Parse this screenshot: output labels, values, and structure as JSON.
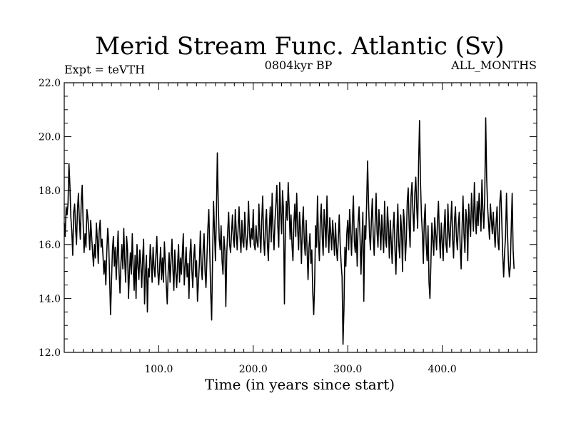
{
  "chart_data": {
    "type": "line",
    "title": "Merid Stream Func. Atlantic (Sv)",
    "subtitle_left": "Expt = teVTH",
    "subtitle_center": "0804kyr BP",
    "subtitle_right": "ALL_MONTHS",
    "xlabel": "Time (in years since start)",
    "ylabel": "",
    "xlim": [
      0,
      500
    ],
    "ylim": [
      12.0,
      22.0
    ],
    "x_ticks": [
      100,
      200,
      300,
      400
    ],
    "x_tick_labels": [
      "100.0",
      "200.0",
      "300.0",
      "400.0"
    ],
    "y_ticks": [
      12,
      14,
      16,
      18,
      20,
      22
    ],
    "y_tick_labels": [
      "12.0",
      "14.0",
      "16.0",
      "18.0",
      "20.0",
      "22.0"
    ],
    "grid": false,
    "line_color": "#000000",
    "series": [
      {
        "x_start": 0,
        "x_step": 1,
        "values": [
          16.8,
          16.3,
          17.4,
          17.1,
          17.5,
          19.0,
          18.2,
          17.0,
          16.5,
          15.6,
          17.2,
          17.5,
          16.6,
          16.0,
          17.3,
          17.9,
          16.9,
          16.2,
          17.6,
          18.2,
          16.8,
          15.7,
          16.4,
          15.9,
          17.3,
          17.0,
          16.5,
          15.8,
          16.9,
          16.3,
          15.7,
          15.2,
          16.0,
          15.5,
          16.8,
          16.2,
          15.3,
          16.5,
          16.9,
          15.9,
          16.2,
          15.6,
          14.9,
          15.4,
          14.5,
          15.7,
          16.6,
          16.1,
          14.8,
          13.4,
          14.6,
          15.8,
          16.3,
          15.2,
          15.9,
          14.7,
          15.6,
          16.5,
          15.0,
          14.2,
          15.3,
          16.0,
          15.1,
          16.6,
          15.4,
          14.6,
          16.3,
          15.8,
          14.0,
          15.0,
          15.7,
          14.9,
          16.4,
          15.1,
          14.3,
          15.6,
          14.0,
          16.0,
          15.2,
          14.7,
          15.8,
          15.3,
          14.4,
          15.5,
          16.2,
          13.8,
          15.0,
          15.6,
          13.5,
          15.1,
          14.8,
          16.0,
          15.4,
          14.6,
          15.9,
          15.2,
          14.8,
          15.6,
          16.3,
          15.0,
          14.5,
          15.2,
          15.9,
          14.7,
          15.5,
          14.6,
          16.1,
          15.3,
          14.5,
          13.8,
          15.0,
          15.7,
          14.6,
          15.4,
          16.2,
          15.1,
          14.3,
          15.8,
          15.0,
          14.4,
          15.3,
          16.0,
          14.6,
          15.5,
          14.9,
          15.7,
          16.4,
          14.5,
          15.2,
          15.9,
          14.8,
          15.3,
          14.0,
          15.6,
          16.2,
          15.1,
          14.4,
          15.5,
          16.0,
          14.8,
          15.4,
          13.9,
          14.6,
          15.3,
          16.5,
          15.2,
          14.7,
          15.8,
          16.4,
          15.0,
          14.4,
          15.5,
          16.6,
          17.3,
          15.7,
          14.2,
          13.2,
          15.6,
          17.6,
          16.5,
          15.4,
          17.1,
          19.4,
          17.5,
          16.2,
          15.8,
          16.7,
          15.4,
          14.9,
          16.3,
          15.8,
          13.7,
          15.7,
          16.5,
          17.2,
          16.0,
          15.7,
          16.4,
          17.1,
          16.2,
          15.9,
          17.3,
          16.5,
          15.8,
          16.6,
          17.4,
          16.3,
          15.7,
          16.9,
          16.1,
          15.9,
          17.2,
          16.4,
          15.8,
          16.3,
          17.6,
          16.5,
          15.9,
          16.6,
          16.2,
          17.3,
          16.0,
          15.8,
          16.7,
          16.1,
          15.9,
          17.5,
          16.4,
          15.7,
          16.9,
          17.8,
          16.2,
          15.6,
          16.8,
          17.3,
          16.0,
          15.4,
          16.6,
          17.4,
          16.1,
          17.9,
          16.5,
          15.8,
          16.9,
          17.5,
          18.2,
          16.7,
          15.9,
          18.3,
          17.2,
          16.4,
          18.0,
          17.3,
          13.8,
          16.5,
          17.6,
          16.9,
          18.3,
          17.4,
          16.2,
          17.1,
          16.0,
          15.4,
          16.8,
          17.5,
          16.3,
          17.9,
          16.6,
          15.8,
          17.2,
          16.5,
          15.3,
          16.7,
          17.4,
          16.1,
          15.6,
          16.9,
          15.8,
          14.7,
          15.9,
          16.4,
          15.3,
          15.8,
          14.2,
          13.4,
          14.6,
          16.7,
          15.9,
          17.8,
          16.2,
          15.4,
          16.9,
          17.5,
          16.3,
          15.6,
          17.3,
          16.7,
          15.9,
          17.8,
          16.5,
          15.7,
          17.0,
          16.4,
          15.8,
          16.9,
          16.3,
          15.6,
          16.8,
          15.9,
          15.4,
          16.2,
          17.1,
          16.0,
          15.3,
          14.8,
          12.3,
          13.6,
          15.9,
          15.2,
          16.4,
          16.9,
          15.8,
          17.3,
          16.5,
          15.6,
          16.9,
          17.8,
          16.1,
          15.7,
          16.6,
          15.2,
          16.8,
          17.4,
          16.3,
          14.9,
          16.1,
          17.2,
          13.9,
          16.7,
          16.2,
          17.5,
          19.1,
          17.6,
          16.4,
          15.8,
          16.9,
          17.7,
          16.3,
          15.6,
          16.8,
          17.9,
          16.5,
          15.9,
          17.3,
          16.6,
          15.8,
          17.1,
          16.4,
          15.7,
          17.6,
          16.2,
          15.9,
          17.4,
          16.7,
          15.5,
          16.9,
          16.1,
          15.3,
          16.6,
          17.2,
          15.8,
          14.9,
          16.4,
          17.5,
          16.0,
          15.5,
          17.1,
          16.5,
          15.0,
          17.3,
          16.8,
          15.4,
          16.2,
          17.6,
          18.1,
          16.7,
          15.9,
          17.8,
          18.3,
          17.2,
          16.5,
          17.9,
          18.5,
          17.4,
          16.6,
          19.0,
          20.6,
          18.3,
          17.1,
          16.4,
          15.3,
          16.9,
          17.5,
          16.0,
          15.4,
          16.7,
          14.6,
          14.0,
          15.3,
          16.8,
          16.2,
          15.6,
          17.0,
          16.4,
          15.8,
          16.9,
          17.6,
          16.3,
          15.5,
          16.8,
          16.1,
          15.4,
          16.6,
          17.3,
          16.0,
          15.7,
          17.5,
          16.5,
          15.9,
          16.8,
          17.6,
          16.2,
          15.5,
          16.9,
          17.4,
          16.3,
          15.8,
          16.7,
          17.2,
          15.9,
          15.1,
          16.6,
          17.8,
          16.4,
          15.7,
          17.3,
          16.9,
          15.4,
          17.5,
          16.8,
          16.3,
          17.9,
          17.1,
          16.5,
          18.3,
          17.0,
          16.4,
          17.6,
          16.7,
          17.9,
          17.2,
          16.5,
          18.4,
          17.3,
          16.6,
          17.8,
          20.7,
          18.5,
          17.4,
          16.8,
          16.2,
          17.5,
          16.9,
          16.4,
          17.2,
          16.5,
          15.9,
          16.8,
          17.4,
          16.1,
          15.8,
          17.6,
          18.0,
          16.9,
          15.6,
          14.8,
          15.7,
          16.3,
          17.9,
          16.5,
          15.4,
          14.8,
          15.2,
          16.6,
          17.9,
          15.8,
          15.1
        ]
      }
    ]
  }
}
